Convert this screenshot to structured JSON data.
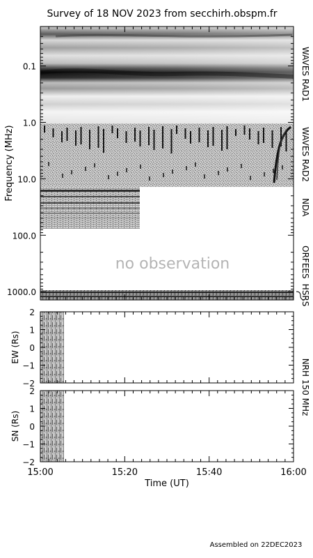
{
  "title": "Survey of 18 NOV 2023 from secchirh.obspm.fr",
  "footer": "Assembled on 22DEC2023",
  "colors": {
    "background": "#ffffff",
    "axis": "#000000",
    "no_obs_text": "#b4b4b4"
  },
  "chart_data": [
    {
      "type": "heatmap",
      "name": "dynamic-spectrum",
      "ylabel": "Frequency (MHz)",
      "yscale": "log",
      "ylim": [
        0.02,
        1400
      ],
      "y_ticks": [
        {
          "value": 0.1,
          "label": "0.1"
        },
        {
          "value": 1.0,
          "label": "1.0"
        },
        {
          "value": 10.0,
          "label": "10.0"
        },
        {
          "value": 100.0,
          "label": "100.0"
        },
        {
          "value": 1000.0,
          "label": "1000.0"
        }
      ],
      "bands": [
        {
          "instrument": "WAVES RAD1",
          "fmin": 0.02,
          "fmax": 1.0,
          "label_freq": 0.14
        },
        {
          "instrument": "WAVES RAD2",
          "fmin": 1.0,
          "fmax": 13.8,
          "label_freq": 3.7
        },
        {
          "instrument": "NDA",
          "fmin": 13.8,
          "fmax": 80,
          "label_freq": 32
        },
        {
          "instrument": "ORFEES",
          "fmin": 80,
          "fmax": 1000,
          "label_freq": 300
        },
        {
          "instrument": "HSRS",
          "fmin": 1000,
          "fmax": 1400,
          "label_freq": 1150
        }
      ],
      "annotation": "no observation"
    },
    {
      "type": "heatmap",
      "name": "nrh-ew",
      "ylabel": "EW (Rs)",
      "ylim": [
        -2,
        2
      ],
      "y_ticks": [
        -2,
        -1,
        0,
        1,
        2
      ]
    },
    {
      "type": "heatmap",
      "name": "nrh-sn",
      "ylabel": "SN (Rs)",
      "ylim": [
        -2,
        2
      ],
      "y_ticks": [
        -2,
        -1,
        0,
        1,
        2
      ]
    }
  ],
  "nrh_label": "NRH 150 MHz",
  "time_axis": {
    "xlabel": "Time (UT)",
    "xlim_minutes": [
      0,
      60
    ],
    "major_ticks": [
      {
        "minute": 0,
        "label": "15:00"
      },
      {
        "minute": 20,
        "label": "15:20"
      },
      {
        "minute": 40,
        "label": "15:40"
      },
      {
        "minute": 60,
        "label": "16:00"
      }
    ],
    "minor_step_minutes": 2
  }
}
